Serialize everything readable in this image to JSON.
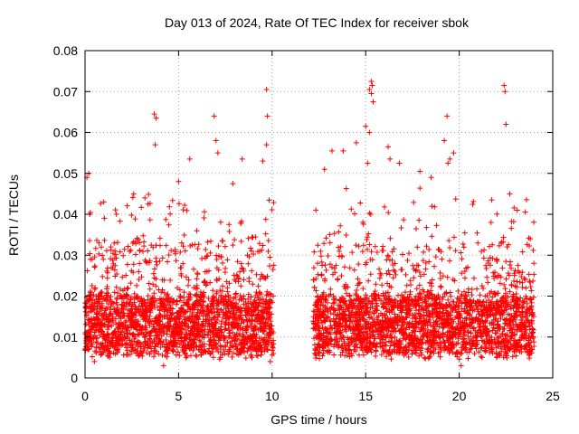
{
  "chart_data": {
    "type": "scatter",
    "title": "Day 013 of 2024, Rate Of TEC Index for receiver sbok",
    "xlabel": "GPS time / hours",
    "ylabel": "ROTI / TECUs",
    "xlim": [
      0,
      25
    ],
    "ylim": [
      0,
      0.08
    ],
    "x_ticks": [
      "0",
      "5",
      "10",
      "15",
      "20",
      "25"
    ],
    "y_ticks": [
      "0",
      "0.01",
      "0.02",
      "0.03",
      "0.04",
      "0.05",
      "0.06",
      "0.07",
      "0.08"
    ],
    "grid": true,
    "marker": "+",
    "color": "#ff0000",
    "series": [
      {
        "points_sample": [
          [
            0.1,
            0.049
          ],
          [
            0.2,
            0.05
          ],
          [
            0.25,
            0.04
          ],
          [
            1.0,
            0.043
          ],
          [
            2.6,
            0.045
          ],
          [
            3.2,
            0.044
          ],
          [
            3.7,
            0.0645
          ],
          [
            3.8,
            0.0635
          ],
          [
            3.75,
            0.057
          ],
          [
            5.0,
            0.048
          ],
          [
            5.6,
            0.0535
          ],
          [
            6.9,
            0.064
          ],
          [
            7.0,
            0.058
          ],
          [
            7.1,
            0.055
          ],
          [
            7.9,
            0.0475
          ],
          [
            8.4,
            0.0535
          ],
          [
            9.5,
            0.053
          ],
          [
            9.7,
            0.0705
          ],
          [
            9.75,
            0.064
          ],
          [
            9.7,
            0.057
          ],
          [
            12.8,
            0.051
          ],
          [
            13.2,
            0.0555
          ],
          [
            13.8,
            0.0555
          ],
          [
            14.5,
            0.0575
          ],
          [
            15.0,
            0.0615
          ],
          [
            15.1,
            0.0525
          ],
          [
            15.2,
            0.0705
          ],
          [
            15.3,
            0.0725
          ],
          [
            15.35,
            0.0715
          ],
          [
            15.3,
            0.0695
          ],
          [
            15.4,
            0.0675
          ],
          [
            15.2,
            0.06
          ],
          [
            16.2,
            0.0565
          ],
          [
            16.3,
            0.0535
          ],
          [
            16.8,
            0.0525
          ],
          [
            17.9,
            0.0505
          ],
          [
            18.5,
            0.049
          ],
          [
            19.2,
            0.058
          ],
          [
            19.35,
            0.064
          ],
          [
            19.5,
            0.0535
          ],
          [
            19.4,
            0.0525
          ],
          [
            19.7,
            0.055
          ],
          [
            21.7,
            0.038
          ],
          [
            22.4,
            0.0715
          ],
          [
            22.45,
            0.07
          ],
          [
            22.5,
            0.062
          ],
          [
            22.7,
            0.045
          ],
          [
            23.1,
            0.041
          ],
          [
            23.8,
            0.034
          ],
          [
            0.5,
            0.004
          ],
          [
            4.2,
            0.003
          ],
          [
            9.9,
            0.004
          ],
          [
            20.1,
            0.003
          ],
          [
            22.0,
            0.005
          ]
        ],
        "density_profile": {
          "segments": [
            [
              0.0,
              10.1
            ],
            [
              12.2,
              24.0
            ]
          ],
          "core_range": [
            0.006,
            0.02
          ],
          "spread_max": 0.045
        }
      }
    ]
  }
}
